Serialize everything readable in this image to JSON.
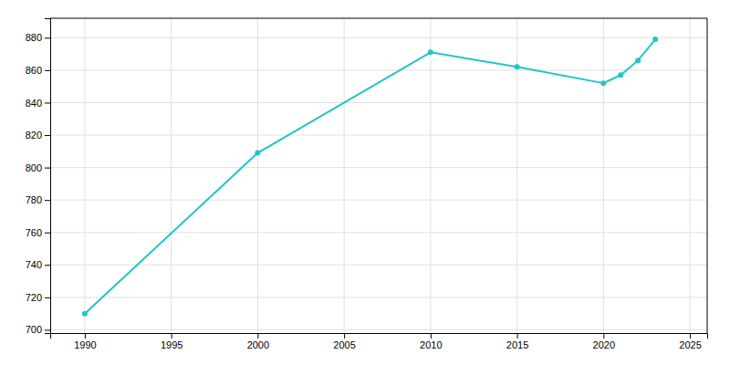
{
  "chart_data": {
    "type": "line",
    "x": [
      1990,
      2000,
      2010,
      2015,
      2020,
      2021,
      2022,
      2023
    ],
    "values": [
      710,
      809,
      871,
      862,
      852,
      857,
      866,
      879
    ],
    "color": "#22c5c5",
    "marker": "circle",
    "xlim": [
      1988,
      2026
    ],
    "ylim": [
      698,
      892
    ],
    "xticks": [
      1990,
      1995,
      2000,
      2005,
      2010,
      2015,
      2020,
      2025
    ],
    "yticks": [
      700,
      720,
      740,
      760,
      780,
      800,
      820,
      840,
      860,
      880
    ],
    "grid": true
  }
}
